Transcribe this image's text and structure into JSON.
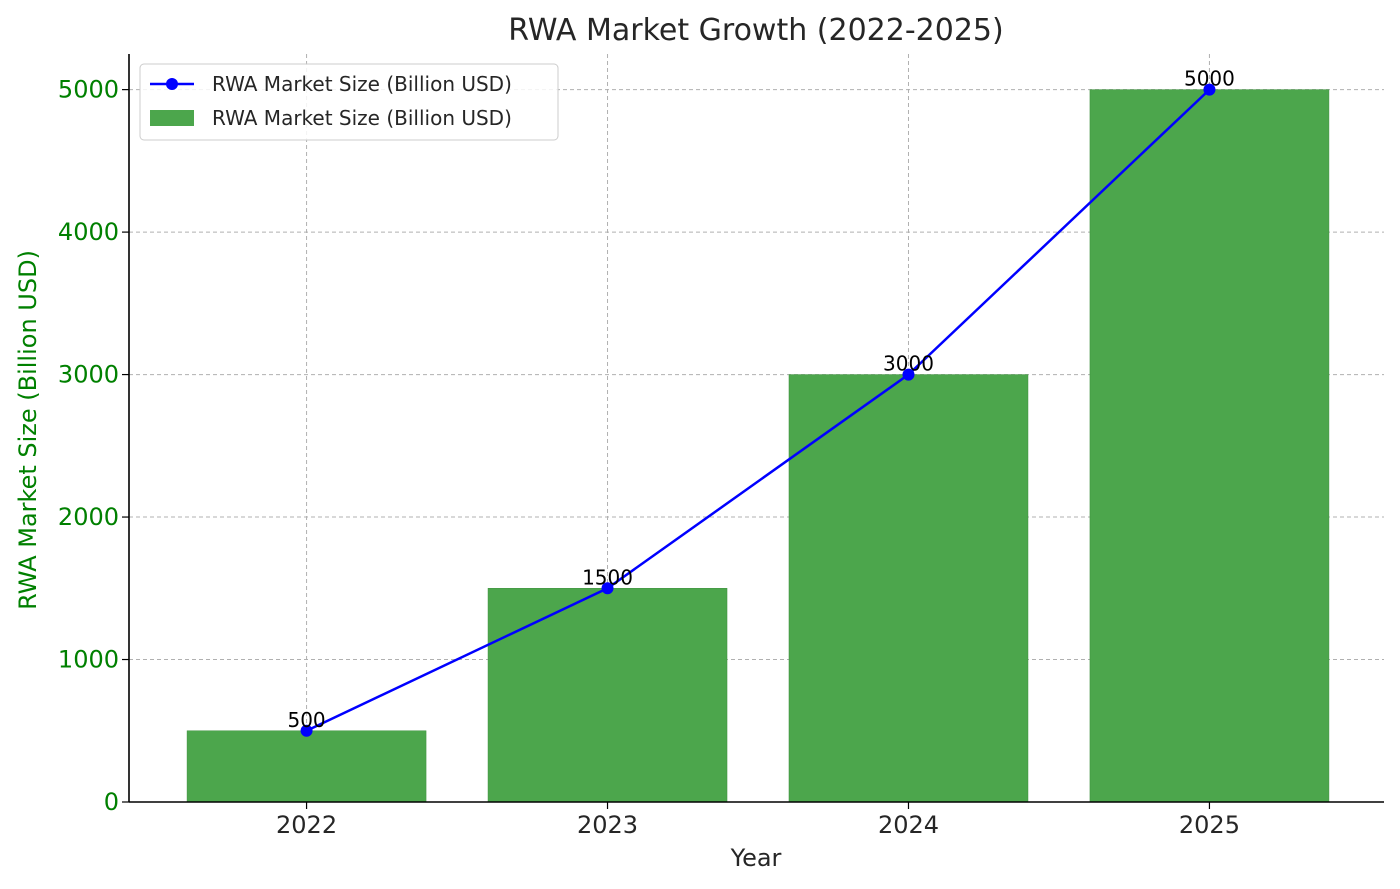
{
  "chart_data": {
    "type": "bar",
    "title": "RWA Market Growth (2022-2025)",
    "xlabel": "Year",
    "ylabel": "RWA Market Size (Billion USD)",
    "categories": [
      "2022",
      "2023",
      "2024",
      "2025"
    ],
    "series": [
      {
        "name": "RWA Market Size (Billion USD)",
        "kind": "line",
        "values": [
          500,
          1500,
          3000,
          5000
        ],
        "color": "#0000ff",
        "marker": "circle"
      },
      {
        "name": "RWA Market Size (Billion USD)",
        "kind": "bar",
        "values": [
          500,
          1500,
          3000,
          5000
        ],
        "color": "#4ca64c"
      }
    ],
    "data_labels": [
      "500",
      "1500",
      "3000",
      "5000"
    ],
    "ylim": [
      0,
      5250
    ],
    "yticks": [
      0,
      1000,
      2000,
      3000,
      4000,
      5000
    ],
    "ytick_color": "#008000",
    "ylabel_color": "#008000",
    "grid": true,
    "legend": {
      "position": "top-left",
      "entries": [
        "RWA Market Size (Billion USD)",
        "RWA Market Size (Billion USD)"
      ]
    }
  }
}
